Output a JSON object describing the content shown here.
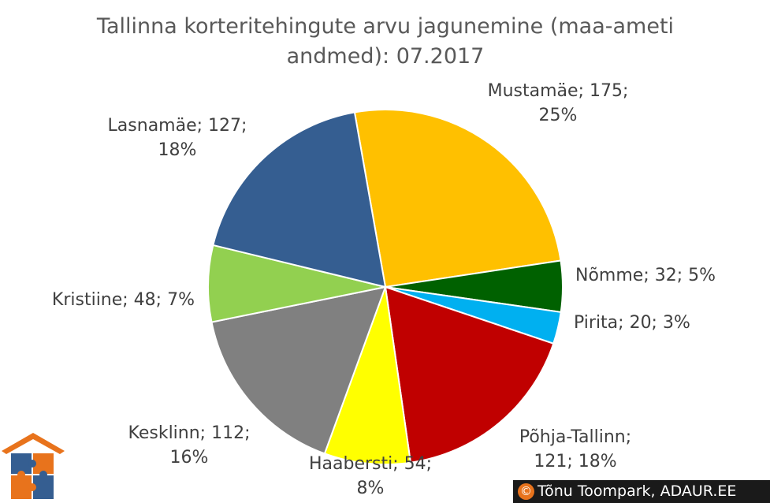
{
  "chart_data": {
    "type": "pie",
    "title": "Tallinna korteritehingute arvu jagunemine (maa-ameti andmed): 07.2017",
    "title_lines": [
      "Tallinna korteritehingute arvu jagunemine (maa-ameti",
      "andmed): 07.2017"
    ],
    "start_angle_deg": -10,
    "slices": [
      {
        "name": "Mustamäe",
        "value": 175,
        "percent": "25%",
        "color": "#FFC000",
        "label_lines": [
          "Mustamäe; 175;",
          "25%"
        ]
      },
      {
        "name": "Nõmme",
        "value": 32,
        "percent": "5%",
        "color": "#006100",
        "label_lines": [
          "Nõmme; 32; 5%"
        ]
      },
      {
        "name": "Pirita",
        "value": 20,
        "percent": "3%",
        "color": "#00B0F0",
        "label_lines": [
          "Pirita; 20; 3%"
        ]
      },
      {
        "name": "Põhja-Tallinn",
        "value": 121,
        "percent": "18%",
        "color": "#C00000",
        "label_lines": [
          "Põhja-Tallinn;",
          "121; 18%"
        ]
      },
      {
        "name": "Haabersti",
        "value": 54,
        "percent": "8%",
        "color": "#FFFF00",
        "label_lines": [
          "Haabersti; 54;",
          "8%"
        ]
      },
      {
        "name": "Kesklinn",
        "value": 112,
        "percent": "16%",
        "color": "#808080",
        "label_lines": [
          "Kesklinn; 112;",
          "16%"
        ]
      },
      {
        "name": "Kristiine",
        "value": 48,
        "percent": "7%",
        "color": "#92D050",
        "label_lines": [
          "Kristiine; 48; 7%"
        ]
      },
      {
        "name": "Lasnamäe",
        "value": 127,
        "percent": "18%",
        "color": "#355E91",
        "label_lines": [
          "Lasnamäe; 127;",
          "18%"
        ]
      }
    ]
  },
  "copyright": {
    "symbol": "©",
    "text": "Tõnu Toompark, ADAUR.EE"
  },
  "logo": {
    "icon": "house-puzzle-icon",
    "colors": [
      "#e8731c",
      "#355e91"
    ]
  }
}
